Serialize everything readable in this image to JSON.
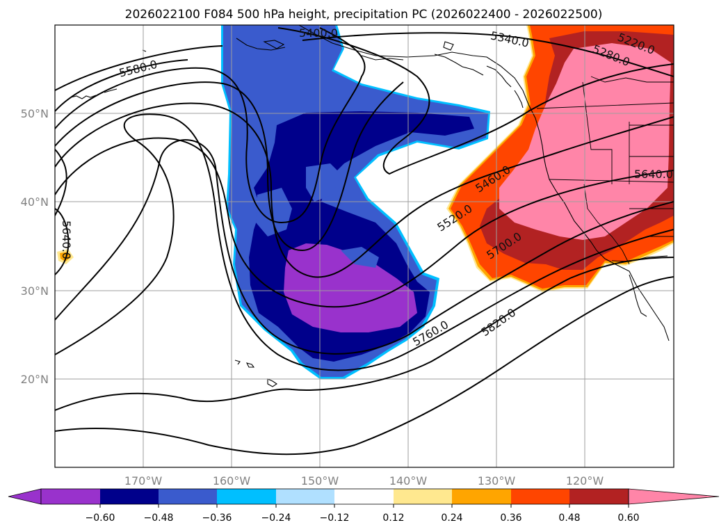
{
  "title": "2026022100 F084 500 hPa height, precipitation PC (2026022400 - 2026022500)",
  "map": {
    "lon_ticks": [
      "170°W",
      "160°W",
      "150°W",
      "140°W",
      "130°W",
      "120°W"
    ],
    "lat_ticks": [
      "50°N",
      "40°N",
      "30°N",
      "20°N"
    ],
    "contour_labels": [
      "5400.0",
      "5340.0",
      "5220.0",
      "5280.0",
      "5580.0",
      "5460.0",
      "5640.0",
      "5520.0",
      "5700.0",
      "5640.0",
      "5760.0",
      "5820.0"
    ]
  },
  "colorbar": {
    "ticks": [
      "−0.60",
      "−0.48",
      "−0.36",
      "−0.24",
      "−0.12",
      "0.12",
      "0.24",
      "0.36",
      "0.48",
      "0.60"
    ],
    "colors": [
      "#9932cc",
      "#00008b",
      "#3a5bcd",
      "#00bfff",
      "#b0e0ff",
      "#ffffff",
      "#ffe88f",
      "#ffa500",
      "#ff4500",
      "#b22222",
      "#ff85a8"
    ]
  }
}
